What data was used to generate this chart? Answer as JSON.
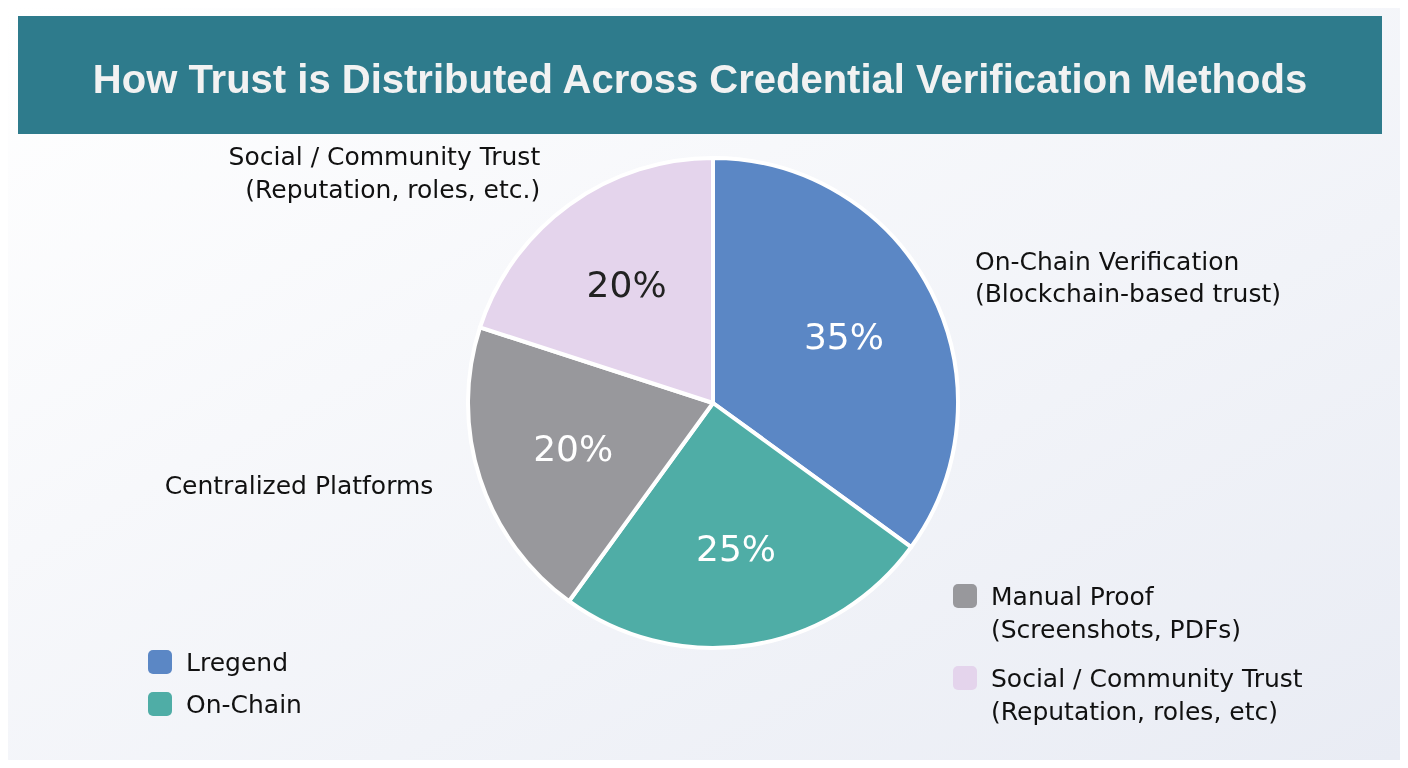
{
  "chart_data": {
    "type": "pie",
    "title": "How Trust is Distributed Across Credential Verification Methods",
    "categories": [
      "On-Chain Verification\n(Blockchain-based trust)",
      null,
      "Centralized Platforms",
      "Social / Community Trust\n(Reputation, roles, etc.)"
    ],
    "values": [
      35,
      25,
      20,
      20
    ],
    "colors": [
      "#5b87c5",
      "#4fada6",
      "#98989c",
      "#e4d4ec"
    ],
    "value_labels": [
      "35%",
      "25%",
      "20%",
      "20%"
    ],
    "annotations": [
      "Lregend",
      "On-Chain",
      "Manual Proof\n(Screenshots, PDFs)",
      "Social / Community Trust\n(Reputation, roles, etc)"
    ]
  }
}
